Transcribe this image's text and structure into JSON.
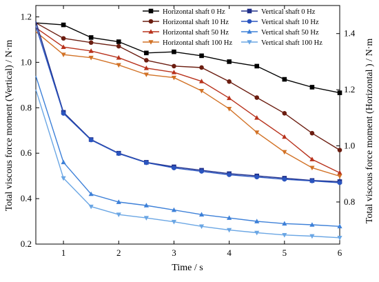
{
  "chart_data": {
    "type": "line",
    "xlabel": "Time / s",
    "ylabel_left": "Total viscous force moment (Vertical) / N·m",
    "ylabel_right": "Total viscous force moment (Horizontal ) / N·m",
    "xlim": [
      0.5,
      6
    ],
    "ylim_left": [
      0.2,
      1.25
    ],
    "ylim_right": [
      0.65,
      1.5
    ],
    "x_ticks": [
      1,
      2,
      3,
      4,
      5,
      6
    ],
    "x_tick_labels": [
      "1",
      "2",
      "3",
      "4",
      "5",
      "6"
    ],
    "y_left_ticks": [
      0.2,
      0.4,
      0.6,
      0.8,
      1.0,
      1.2
    ],
    "y_left_tick_labels": [
      "0.2",
      "0.4",
      "0.6",
      "0.8",
      "1.0",
      "1.2"
    ],
    "y_right_ticks": [
      0.8,
      1.0,
      1.2,
      1.4
    ],
    "y_right_tick_labels": [
      "0.8",
      "1.0",
      "1.2",
      "1.4"
    ],
    "grid": false,
    "legend_placement": "top-right",
    "x": [
      0.5,
      1,
      1.5,
      2,
      2.5,
      3,
      3.5,
      4,
      4.5,
      5,
      5.5,
      6
    ],
    "series": [
      {
        "name": "Horizontal shaft 0 Hz",
        "axis": "right",
        "marker": "square",
        "color": "#000000",
        "values": [
          1.438,
          1.431,
          1.386,
          1.371,
          1.331,
          1.335,
          1.321,
          1.3,
          1.284,
          1.237,
          1.209,
          1.189
        ]
      },
      {
        "name": "Horizontal shaft 10 Hz",
        "axis": "right",
        "marker": "circle",
        "color": "#6b1d10",
        "values": [
          1.438,
          1.383,
          1.368,
          1.355,
          1.305,
          1.284,
          1.279,
          1.229,
          1.172,
          1.116,
          1.045,
          0.985
        ]
      },
      {
        "name": "Horizontal shaft 50 Hz",
        "axis": "right",
        "marker": "triangle-up",
        "color": "#b8321c",
        "values": [
          1.421,
          1.352,
          1.338,
          1.314,
          1.277,
          1.262,
          1.23,
          1.17,
          1.1,
          1.032,
          0.952,
          0.904
        ]
      },
      {
        "name": "Horizontal shaft 100 Hz",
        "axis": "right",
        "marker": "triangle-down",
        "color": "#d27226",
        "values": [
          1.407,
          1.325,
          1.314,
          1.288,
          1.254,
          1.243,
          1.196,
          1.132,
          1.048,
          0.978,
          0.922,
          0.892
        ]
      },
      {
        "name": "Vertical shaft 0 Hz",
        "axis": "left",
        "marker": "square",
        "color": "#1f2f8a",
        "values": [
          1.18,
          0.78,
          0.66,
          0.6,
          0.56,
          0.54,
          0.525,
          0.51,
          0.5,
          0.49,
          0.48,
          0.475
        ]
      },
      {
        "name": "Vertical shaft 10 Hz",
        "axis": "left",
        "marker": "circle",
        "color": "#2a55c0",
        "values": [
          1.16,
          0.775,
          0.658,
          0.598,
          0.558,
          0.535,
          0.52,
          0.505,
          0.495,
          0.485,
          0.478,
          0.47
        ]
      },
      {
        "name": "Vertical shaft 50 Hz",
        "axis": "left",
        "marker": "triangle-up",
        "color": "#3d80d8",
        "values": [
          0.94,
          0.56,
          0.42,
          0.385,
          0.37,
          0.35,
          0.33,
          0.315,
          0.3,
          0.29,
          0.285,
          0.278
        ]
      },
      {
        "name": "Vertical shaft 100 Hz",
        "axis": "left",
        "marker": "triangle-down",
        "color": "#6aa6e4",
        "values": [
          0.88,
          0.49,
          0.365,
          0.33,
          0.315,
          0.298,
          0.278,
          0.262,
          0.25,
          0.24,
          0.235,
          0.228
        ]
      }
    ]
  }
}
